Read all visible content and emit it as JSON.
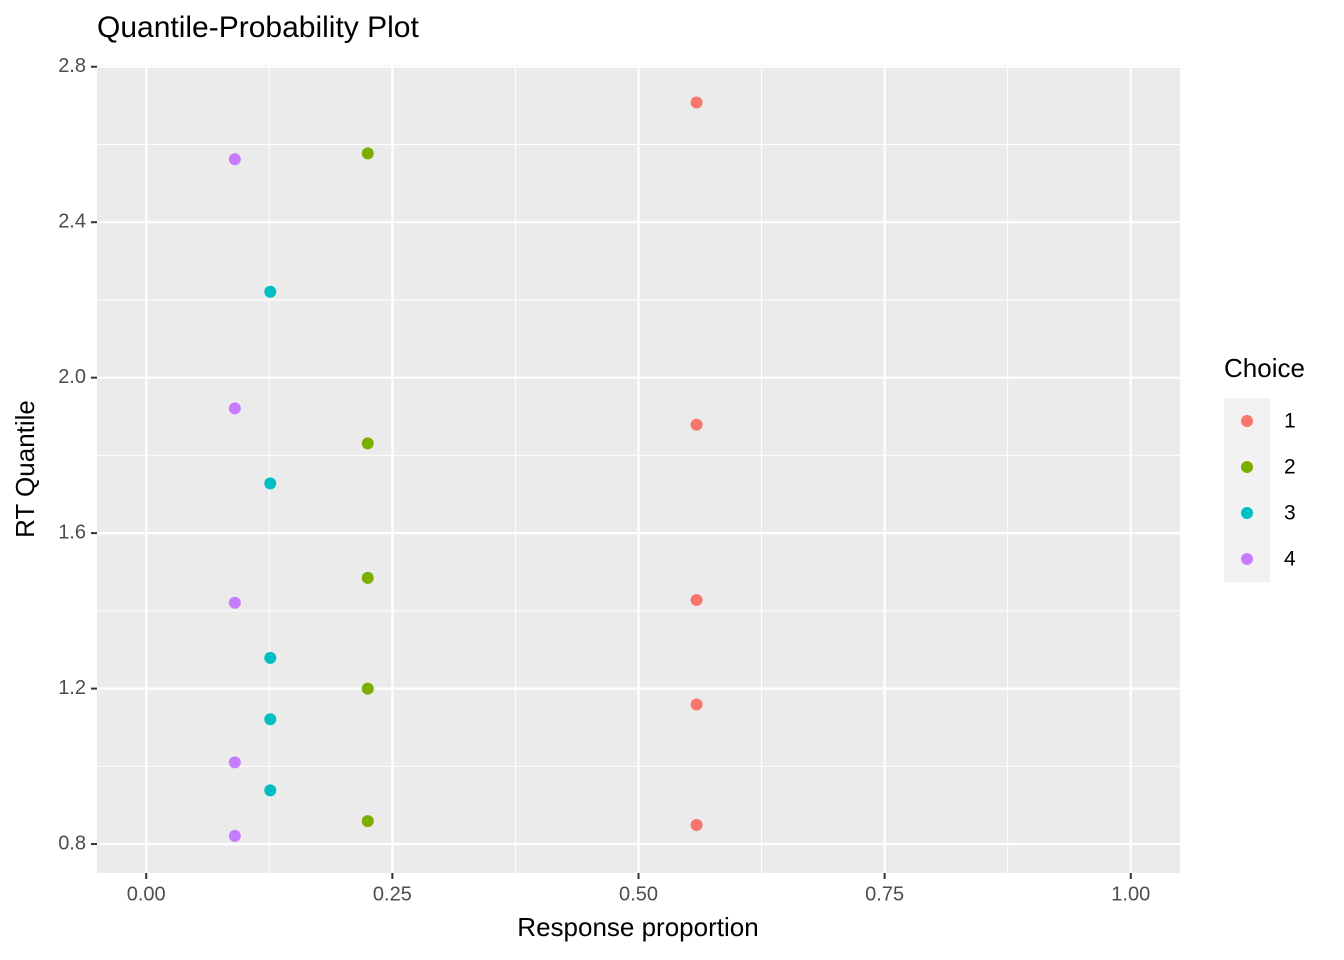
{
  "chart_data": {
    "type": "scatter",
    "title": "Quantile-Probability Plot",
    "x_label": "Response proportion",
    "y_label": "RT Quantile",
    "legend_title": "Choice",
    "legend_position": "right",
    "grid": true,
    "xlim": [
      -0.05,
      1.05
    ],
    "xticks": [
      {
        "value": 0,
        "label": "0.00"
      },
      {
        "value": 0.25,
        "label": "0.25"
      },
      {
        "value": 0.5,
        "label": "0.50"
      },
      {
        "value": 0.75,
        "label": "0.75"
      },
      {
        "value": 1,
        "label": "1.00"
      }
    ],
    "ylim": [
      0.7255,
      2.8045
    ],
    "yticks": [
      0.8,
      1.2,
      1.6,
      {
        "value": 2,
        "label": "2.0"
      },
      2.4,
      2.8
    ],
    "series": [
      {
        "name": "1",
        "color": "#F8766D",
        "x": [
          0.559,
          0.559,
          0.559,
          0.559,
          0.559
        ],
        "values": [
          2.708,
          1.879,
          1.428,
          1.159,
          0.849
        ]
      },
      {
        "name": "2",
        "color": "#7CAE00",
        "x": [
          0.225,
          0.225,
          0.225,
          0.225,
          0.225
        ],
        "values": [
          2.577,
          1.831,
          1.485,
          1.2,
          0.859
        ]
      },
      {
        "name": "3",
        "color": "#00BFC4",
        "x": [
          0.126,
          0.126,
          0.126,
          0.126,
          0.126
        ],
        "values": [
          2.221,
          1.728,
          1.279,
          1.121,
          0.938
        ]
      },
      {
        "name": "4",
        "color": "#C77CFF",
        "x": [
          0.09,
          0.09,
          0.09,
          0.09,
          0.09
        ],
        "values": [
          2.562,
          1.921,
          1.421,
          1.01,
          0.821
        ]
      }
    ]
  }
}
